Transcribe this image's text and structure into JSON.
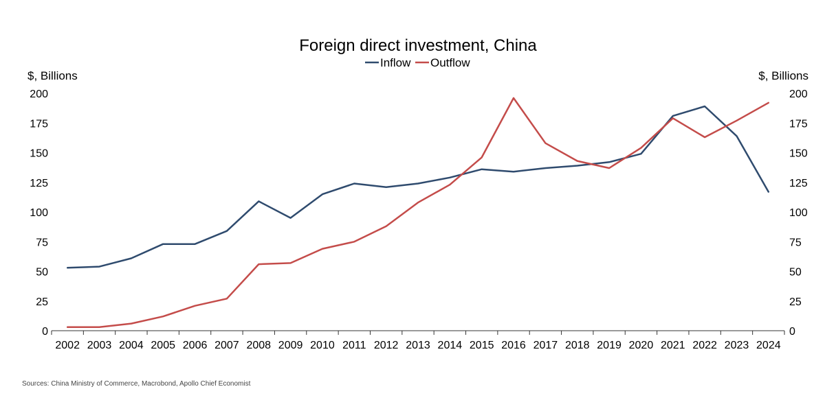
{
  "chart_data": {
    "type": "line",
    "title": "Foreign direct investment, China",
    "ylabel_left": "$, Billions",
    "ylabel_right": "$, Billions",
    "ylim": [
      0,
      200
    ],
    "yticks": [
      0,
      25,
      50,
      75,
      100,
      125,
      150,
      175,
      200
    ],
    "grid": false,
    "legend_position": "top-center",
    "x": [
      "2002",
      "2003",
      "2004",
      "2005",
      "2006",
      "2007",
      "2008",
      "2009",
      "2010",
      "2011",
      "2012",
      "2013",
      "2014",
      "2015",
      "2016",
      "2017",
      "2018",
      "2019",
      "2020",
      "2021",
      "2022",
      "2023",
      "2024"
    ],
    "series": [
      {
        "name": "Inflow",
        "color": "#2f4b6e",
        "values": [
          53,
          54,
          61,
          73,
          73,
          84,
          109,
          95,
          115,
          124,
          121,
          124,
          129,
          136,
          134,
          137,
          139,
          142,
          149,
          181,
          189,
          164,
          117
        ]
      },
      {
        "name": "Outflow",
        "color": "#c44c4a",
        "values": [
          3,
          3,
          6,
          12,
          21,
          27,
          56,
          57,
          69,
          75,
          88,
          108,
          123,
          146,
          196,
          158,
          143,
          137,
          154,
          179,
          163,
          177,
          192
        ]
      }
    ]
  },
  "source": "Sources: China Ministry of Commerce, Macrobond, Apollo Chief Economist"
}
